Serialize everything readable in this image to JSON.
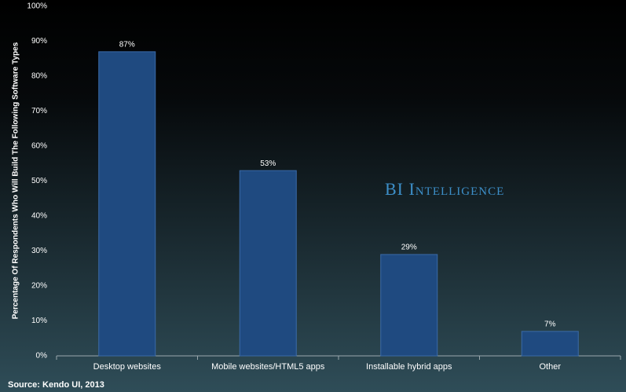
{
  "chart_data": {
    "type": "bar",
    "y_axis_label": "Percentage Of Respondents Who Will Build The Following Software Types",
    "categories": [
      "Desktop websites",
      "Mobile websites/HTML5 apps",
      "Installable hybrid apps",
      "Other"
    ],
    "values": [
      87,
      53,
      29,
      7
    ],
    "value_labels": [
      "87%",
      "53%",
      "29%",
      "7%"
    ],
    "color": "#1f4a80",
    "ylim": [
      0,
      100
    ],
    "yticks": [
      {
        "value": 0,
        "label": "0%"
      },
      {
        "value": 10,
        "label": "10%"
      },
      {
        "value": 20,
        "label": "20%"
      },
      {
        "value": 30,
        "label": "30%"
      },
      {
        "value": 40,
        "label": "40%"
      },
      {
        "value": 50,
        "label": "50%"
      },
      {
        "value": 60,
        "label": "60%"
      },
      {
        "value": 70,
        "label": "70%"
      },
      {
        "value": 80,
        "label": "80%"
      },
      {
        "value": 90,
        "label": "90%"
      },
      {
        "value": 100,
        "label": "100%"
      }
    ],
    "grid": false,
    "watermark": "BI Intelligence",
    "source": "Source: Kendo UI, 2013"
  }
}
